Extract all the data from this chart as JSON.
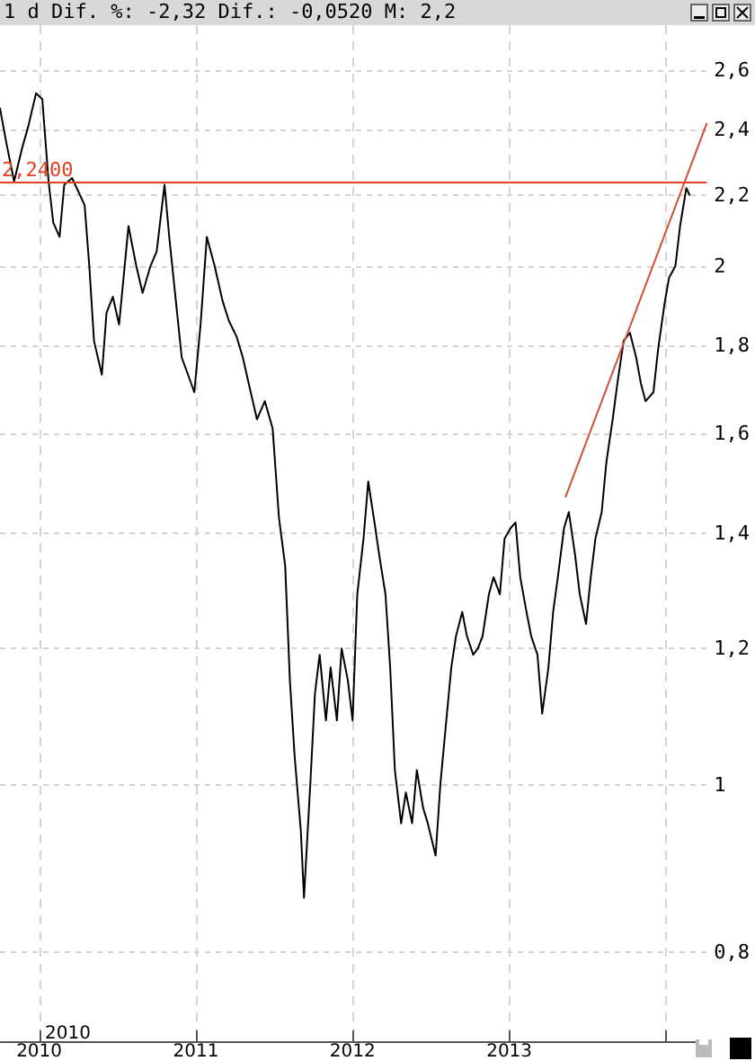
{
  "chart_data": {
    "type": "line",
    "title": "1 d Dif. %: -2,32 Dif.: -0,0520 M: 2,2",
    "annotations": [
      "2010"
    ],
    "log": "y",
    "grid": true,
    "marker": "none",
    "xlim": [
      2009.75,
      2014.26
    ],
    "xticks": [
      {
        "value": 2010,
        "label": "2010"
      },
      {
        "value": 2011,
        "label": "2011"
      },
      {
        "value": 2012,
        "label": "2012"
      },
      {
        "value": 2013,
        "label": "2013"
      },
      {
        "value": 2014,
        "label": null
      }
    ],
    "ylim": [
      0.71,
      2.76
    ],
    "yticks": [
      {
        "value": 0.8,
        "label": "0,8"
      },
      {
        "value": 1,
        "label": "1"
      },
      {
        "value": 1.2,
        "label": "1,2"
      },
      {
        "value": 1.4,
        "label": "1,4"
      },
      {
        "value": 1.6,
        "label": "1,6"
      },
      {
        "value": 1.8,
        "label": "1,8"
      },
      {
        "value": 2,
        "label": "2"
      },
      {
        "value": 2.2,
        "label": "2,2"
      },
      {
        "value": 2.4,
        "label": "2,4"
      },
      {
        "value": 2.6,
        "label": "2,6"
      }
    ],
    "ref_lines": [
      {
        "axis": "y",
        "value": 2.24,
        "label": "2,2400",
        "color": "#e04020"
      }
    ],
    "series": [
      {
        "color": "#000000",
        "x": [
          2009.75,
          2009.79,
          2009.84,
          2009.89,
          2009.93,
          2009.98,
          2010.02,
          2010.06,
          2010.09,
          2010.13,
          2010.16,
          2010.21,
          2010.25,
          2010.29,
          2010.32,
          2010.35,
          2010.4,
          2010.43,
          2010.47,
          2010.51,
          2010.57,
          2010.62,
          2010.66,
          2010.71,
          2010.75,
          2010.8,
          2010.83,
          2010.88,
          2010.91,
          2010.95,
          2010.99,
          2011.03,
          2011.07,
          2011.12,
          2011.17,
          2011.21,
          2011.26,
          2011.3,
          2011.35,
          2011.39,
          2011.44,
          2011.49,
          2011.53,
          2011.57,
          2011.6,
          2011.63,
          2011.67,
          2011.69,
          2011.73,
          2011.76,
          2011.79,
          2011.83,
          2011.86,
          2011.9,
          2011.93,
          2011.97,
          2012.0,
          2012.03,
          2012.07,
          2012.1,
          2012.14,
          2012.17,
          2012.21,
          2012.24,
          2012.27,
          2012.31,
          2012.34,
          2012.38,
          2012.41,
          2012.45,
          2012.48,
          2012.53,
          2012.56,
          2012.59,
          2012.63,
          2012.66,
          2012.7,
          2012.73,
          2012.77,
          2012.8,
          2012.83,
          2012.87,
          2012.9,
          2012.94,
          2012.97,
          2013.01,
          2013.04,
          2013.07,
          2013.11,
          2013.14,
          2013.18,
          2013.21,
          2013.25,
          2013.28,
          2013.31,
          2013.35,
          2013.38,
          2013.42,
          2013.45,
          2013.49,
          2013.52,
          2013.55,
          2013.59,
          2013.62,
          2013.66,
          2013.69,
          2013.73,
          2013.77,
          2013.81,
          2013.84,
          2013.87,
          2013.92,
          2013.95,
          2013.99,
          2014.02,
          2014.06,
          2014.09,
          2014.13,
          2014.15
        ],
        "values": [
          2.47,
          2.36,
          2.24,
          2.34,
          2.41,
          2.52,
          2.5,
          2.24,
          2.12,
          2.08,
          2.23,
          2.25,
          2.21,
          2.17,
          2.0,
          1.81,
          1.73,
          1.88,
          1.92,
          1.85,
          2.11,
          2.0,
          1.93,
          2.0,
          2.04,
          2.23,
          2.08,
          1.88,
          1.77,
          1.73,
          1.69,
          1.85,
          2.08,
          2.0,
          1.91,
          1.86,
          1.82,
          1.77,
          1.69,
          1.63,
          1.67,
          1.61,
          1.43,
          1.34,
          1.15,
          1.04,
          0.94,
          0.86,
          1.0,
          1.13,
          1.19,
          1.09,
          1.17,
          1.09,
          1.2,
          1.15,
          1.09,
          1.29,
          1.39,
          1.5,
          1.42,
          1.36,
          1.29,
          1.17,
          1.02,
          0.95,
          0.99,
          0.95,
          1.02,
          0.97,
          0.95,
          0.91,
          1.0,
          1.07,
          1.17,
          1.22,
          1.26,
          1.22,
          1.19,
          1.2,
          1.22,
          1.29,
          1.32,
          1.29,
          1.39,
          1.41,
          1.42,
          1.32,
          1.26,
          1.22,
          1.19,
          1.1,
          1.17,
          1.26,
          1.32,
          1.41,
          1.44,
          1.36,
          1.29,
          1.24,
          1.32,
          1.39,
          1.44,
          1.54,
          1.63,
          1.71,
          1.81,
          1.83,
          1.77,
          1.71,
          1.67,
          1.69,
          1.79,
          1.9,
          1.97,
          2.0,
          2.11,
          2.22,
          2.2
        ]
      },
      {
        "type": "line",
        "color": "#d05030",
        "x": [
          2013.36,
          2014.26
        ],
        "values": [
          1.47,
          2.42
        ]
      }
    ]
  }
}
